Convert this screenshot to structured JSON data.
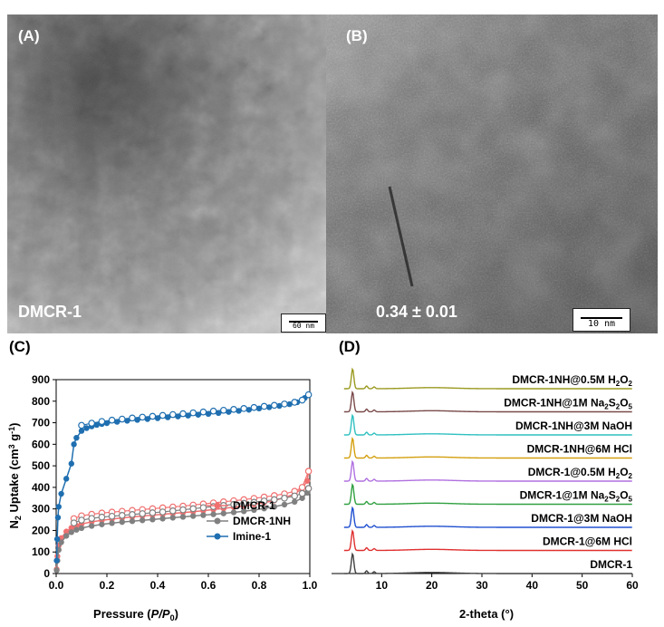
{
  "panels": {
    "A": {
      "letter": "(A)",
      "caption": "DMCR-1",
      "scalebar": "60 nm"
    },
    "B": {
      "letter": "(B)",
      "caption": "0.34 ± 0.01",
      "scalebar": "10 nm"
    },
    "C": {
      "letter": "(C)"
    },
    "D": {
      "letter": "(D)"
    }
  },
  "chart_data": [
    {
      "type": "scatter",
      "panel": "C",
      "xlabel": "Pressure (P/P0)",
      "ylabel": "N2 Uptake (cm3 g-1)",
      "xlim": [
        0,
        1.0
      ],
      "ylim": [
        0,
        900
      ],
      "xticks": [
        "0.0",
        "0.2",
        "0.4",
        "0.6",
        "0.8",
        "1.0"
      ],
      "yticks": [
        "0",
        "100",
        "200",
        "300",
        "400",
        "500",
        "600",
        "700",
        "800",
        "900"
      ],
      "legend_position": "bottom-right",
      "series": [
        {
          "name": "DMCR-1",
          "color": "#f07070",
          "adsorption": [
            [
              0.002,
              20
            ],
            [
              0.005,
              80
            ],
            [
              0.01,
              130
            ],
            [
              0.02,
              165
            ],
            [
              0.04,
              195
            ],
            [
              0.06,
              212
            ],
            [
              0.08,
              222
            ],
            [
              0.1,
              230
            ],
            [
              0.14,
              240
            ],
            [
              0.18,
              247
            ],
            [
              0.22,
              253
            ],
            [
              0.26,
              258
            ],
            [
              0.3,
              263
            ],
            [
              0.34,
              267
            ],
            [
              0.38,
              271
            ],
            [
              0.42,
              275
            ],
            [
              0.46,
              279
            ],
            [
              0.5,
              283
            ],
            [
              0.54,
              287
            ],
            [
              0.58,
              292
            ],
            [
              0.62,
              297
            ],
            [
              0.66,
              302
            ],
            [
              0.7,
              308
            ],
            [
              0.74,
              314
            ],
            [
              0.78,
              321
            ],
            [
              0.82,
              329
            ],
            [
              0.86,
              339
            ],
            [
              0.9,
              352
            ],
            [
              0.94,
              370
            ],
            [
              0.97,
              395
            ],
            [
              0.99,
              430
            ],
            [
              0.995,
              475
            ]
          ],
          "desorption": [
            [
              0.995,
              475
            ],
            [
              0.97,
              400
            ],
            [
              0.94,
              382
            ],
            [
              0.9,
              370
            ],
            [
              0.86,
              362
            ],
            [
              0.82,
              355
            ],
            [
              0.78,
              349
            ],
            [
              0.74,
              343
            ],
            [
              0.7,
              338
            ],
            [
              0.66,
              333
            ],
            [
              0.62,
              328
            ],
            [
              0.58,
              323
            ],
            [
              0.54,
              318
            ],
            [
              0.5,
              313
            ],
            [
              0.46,
              309
            ],
            [
              0.42,
              305
            ],
            [
              0.38,
              301
            ],
            [
              0.34,
              297
            ],
            [
              0.3,
              293
            ],
            [
              0.26,
              289
            ],
            [
              0.22,
              285
            ],
            [
              0.18,
              281
            ],
            [
              0.14,
              275
            ],
            [
              0.1,
              268
            ],
            [
              0.07,
              255
            ]
          ]
        },
        {
          "name": "DMCR-1NH",
          "color": "#808080",
          "adsorption": [
            [
              0.002,
              15
            ],
            [
              0.005,
              60
            ],
            [
              0.01,
              110
            ],
            [
              0.02,
              145
            ],
            [
              0.04,
              175
            ],
            [
              0.06,
              192
            ],
            [
              0.08,
              203
            ],
            [
              0.1,
              211
            ],
            [
              0.14,
              221
            ],
            [
              0.18,
              228
            ],
            [
              0.22,
              234
            ],
            [
              0.26,
              239
            ],
            [
              0.3,
              243
            ],
            [
              0.34,
              247
            ],
            [
              0.38,
              251
            ],
            [
              0.42,
              255
            ],
            [
              0.46,
              259
            ],
            [
              0.5,
              263
            ],
            [
              0.54,
              267
            ],
            [
              0.58,
              271
            ],
            [
              0.62,
              275
            ],
            [
              0.66,
              279
            ],
            [
              0.7,
              284
            ],
            [
              0.74,
              289
            ],
            [
              0.78,
              295
            ],
            [
              0.82,
              302
            ],
            [
              0.86,
              310
            ],
            [
              0.9,
              320
            ],
            [
              0.94,
              333
            ],
            [
              0.97,
              350
            ],
            [
              0.99,
              375
            ],
            [
              0.995,
              395
            ]
          ],
          "desorption": [
            [
              0.995,
              395
            ],
            [
              0.97,
              372
            ],
            [
              0.94,
              360
            ],
            [
              0.9,
              350
            ],
            [
              0.86,
              343
            ],
            [
              0.82,
              337
            ],
            [
              0.78,
              331
            ],
            [
              0.74,
              326
            ],
            [
              0.7,
              321
            ],
            [
              0.66,
              316
            ],
            [
              0.62,
              311
            ],
            [
              0.58,
              306
            ],
            [
              0.54,
              301
            ],
            [
              0.5,
              296
            ],
            [
              0.46,
              291
            ],
            [
              0.42,
              286
            ],
            [
              0.38,
              282
            ],
            [
              0.34,
              278
            ],
            [
              0.3,
              274
            ],
            [
              0.26,
              270
            ],
            [
              0.22,
              266
            ],
            [
              0.18,
              262
            ],
            [
              0.14,
              256
            ],
            [
              0.1,
              248
            ],
            [
              0.07,
              235
            ]
          ]
        },
        {
          "name": "Imine-1",
          "color": "#1f6fb0",
          "adsorption": [
            [
              0.002,
              60
            ],
            [
              0.004,
              160
            ],
            [
              0.007,
              260
            ],
            [
              0.01,
              310
            ],
            [
              0.02,
              370
            ],
            [
              0.04,
              440
            ],
            [
              0.06,
              510
            ],
            [
              0.07,
              600
            ],
            [
              0.08,
              630
            ],
            [
              0.1,
              662
            ],
            [
              0.12,
              675
            ],
            [
              0.14,
              683
            ],
            [
              0.16,
              690
            ],
            [
              0.18,
              694
            ],
            [
              0.2,
              698
            ],
            [
              0.24,
              704
            ],
            [
              0.28,
              709
            ],
            [
              0.32,
              713
            ],
            [
              0.36,
              717
            ],
            [
              0.4,
              721
            ],
            [
              0.44,
              725
            ],
            [
              0.48,
              729
            ],
            [
              0.52,
              733
            ],
            [
              0.56,
              737
            ],
            [
              0.6,
              741
            ],
            [
              0.64,
              745
            ],
            [
              0.68,
              750
            ],
            [
              0.72,
              755
            ],
            [
              0.76,
              760
            ],
            [
              0.8,
              766
            ],
            [
              0.84,
              772
            ],
            [
              0.88,
              778
            ],
            [
              0.92,
              786
            ],
            [
              0.95,
              795
            ],
            [
              0.98,
              815
            ],
            [
              0.995,
              830
            ]
          ],
          "desorption": [
            [
              0.995,
              830
            ],
            [
              0.97,
              805
            ],
            [
              0.94,
              795
            ],
            [
              0.9,
              787
            ],
            [
              0.86,
              781
            ],
            [
              0.82,
              776
            ],
            [
              0.78,
              771
            ],
            [
              0.74,
              766
            ],
            [
              0.7,
              762
            ],
            [
              0.66,
              758
            ],
            [
              0.62,
              754
            ],
            [
              0.58,
              750
            ],
            [
              0.54,
              746
            ],
            [
              0.5,
              742
            ],
            [
              0.46,
              738
            ],
            [
              0.42,
              734
            ],
            [
              0.38,
              730
            ],
            [
              0.34,
              726
            ],
            [
              0.3,
              722
            ],
            [
              0.26,
              717
            ],
            [
              0.22,
              712
            ],
            [
              0.18,
              706
            ],
            [
              0.14,
              698
            ],
            [
              0.1,
              688
            ]
          ]
        }
      ]
    },
    {
      "type": "line",
      "panel": "D",
      "xlabel": "2-theta (°)",
      "xlim": [
        0,
        60
      ],
      "xticks": [
        "10",
        "20",
        "30",
        "40",
        "50",
        "60"
      ],
      "series": [
        {
          "name": "DMCR-1NH@0.5M H2O2",
          "color": "#9a9a20"
        },
        {
          "name": "DMCR-1NH@1M Na2S2O5",
          "color": "#7a4a4a"
        },
        {
          "name": "DMCR-1NH@3M NaOH",
          "color": "#30c0c0"
        },
        {
          "name": "DMCR-1NH@6M HCl",
          "color": "#d4a010"
        },
        {
          "name": "DMCR-1@0.5M H2O2",
          "color": "#b070e0"
        },
        {
          "name": "DMCR-1@1M Na2S2O5",
          "color": "#30a040"
        },
        {
          "name": "DMCR-1@3M NaOH",
          "color": "#2050d0"
        },
        {
          "name": "DMCR-1@6M HCl",
          "color": "#e03030"
        },
        {
          "name": "DMCR-1",
          "color": "#404040"
        }
      ],
      "peaks_2theta": [
        4.2,
        7.0,
        8.5
      ]
    }
  ]
}
